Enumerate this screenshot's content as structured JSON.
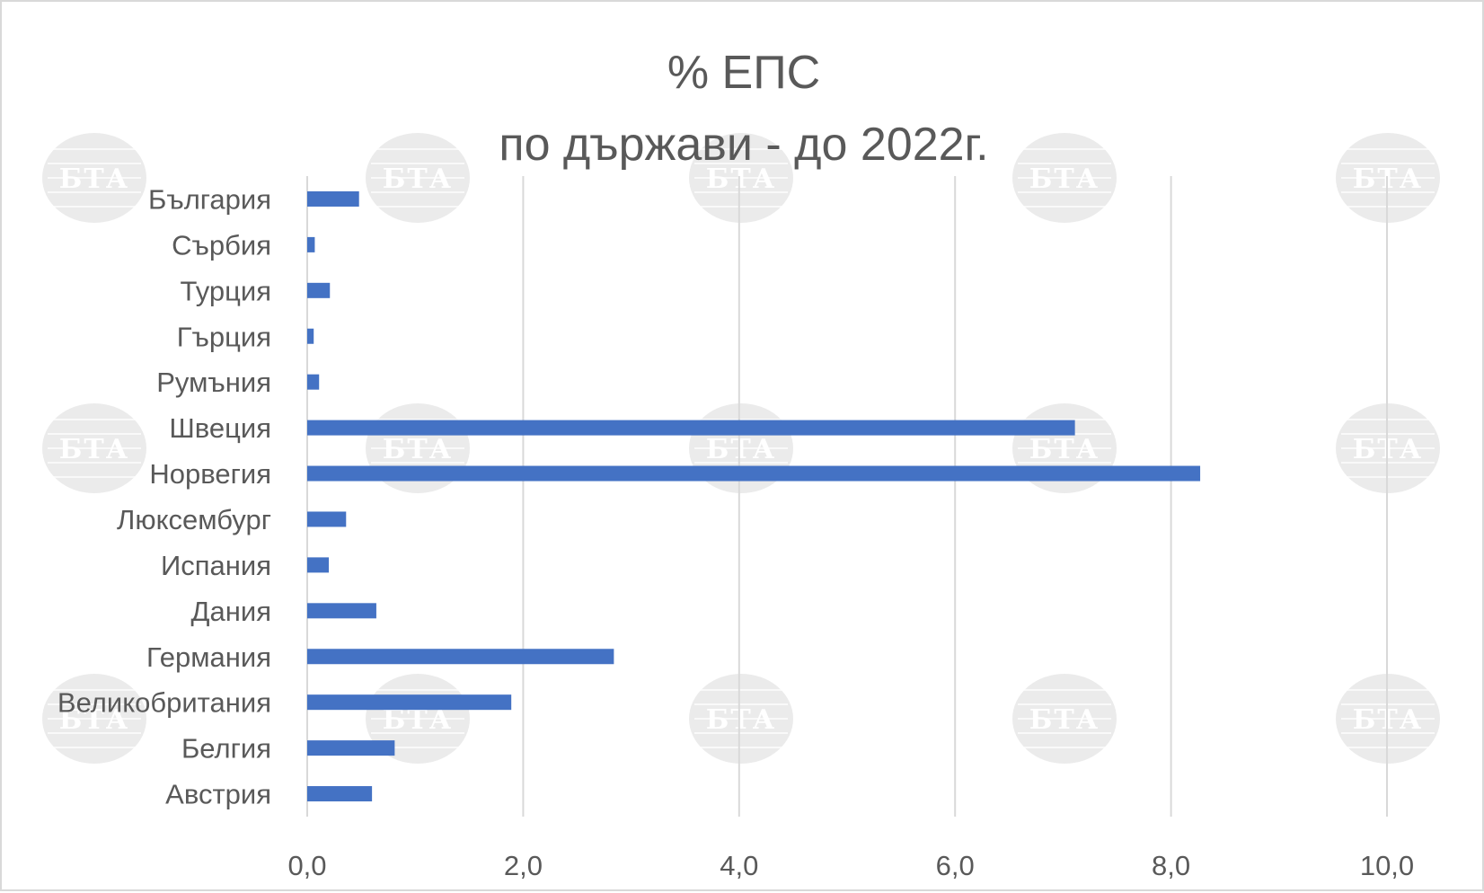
{
  "chart_data": {
    "type": "bar",
    "orientation": "horizontal",
    "title": [
      "% ЕПС",
      "по държави - до 2022г."
    ],
    "categories": [
      "България",
      "Сърбия",
      "Турция",
      "Гърция",
      "Румъния",
      "Швеция",
      "Норвегия",
      "Люксембург",
      "Испания",
      "Дания",
      "Германия",
      "Великобритания",
      "Белгия",
      "Австрия"
    ],
    "values": [
      0.48,
      0.07,
      0.21,
      0.06,
      0.11,
      7.11,
      8.27,
      0.36,
      0.2,
      0.64,
      2.84,
      1.89,
      0.81,
      0.6
    ],
    "xlim": [
      0,
      10
    ],
    "xticks": [
      0,
      2,
      4,
      6,
      8,
      10
    ],
    "xtick_labels": [
      "0,0",
      "2,0",
      "4,0",
      "6,0",
      "8,0",
      "10,0"
    ],
    "grid": "vertical",
    "legend": "none",
    "bar_color": "#4472c4",
    "grid_color": "#d9d9d9"
  },
  "watermark": {
    "text": "БТА",
    "color": "#e8e8e8"
  }
}
